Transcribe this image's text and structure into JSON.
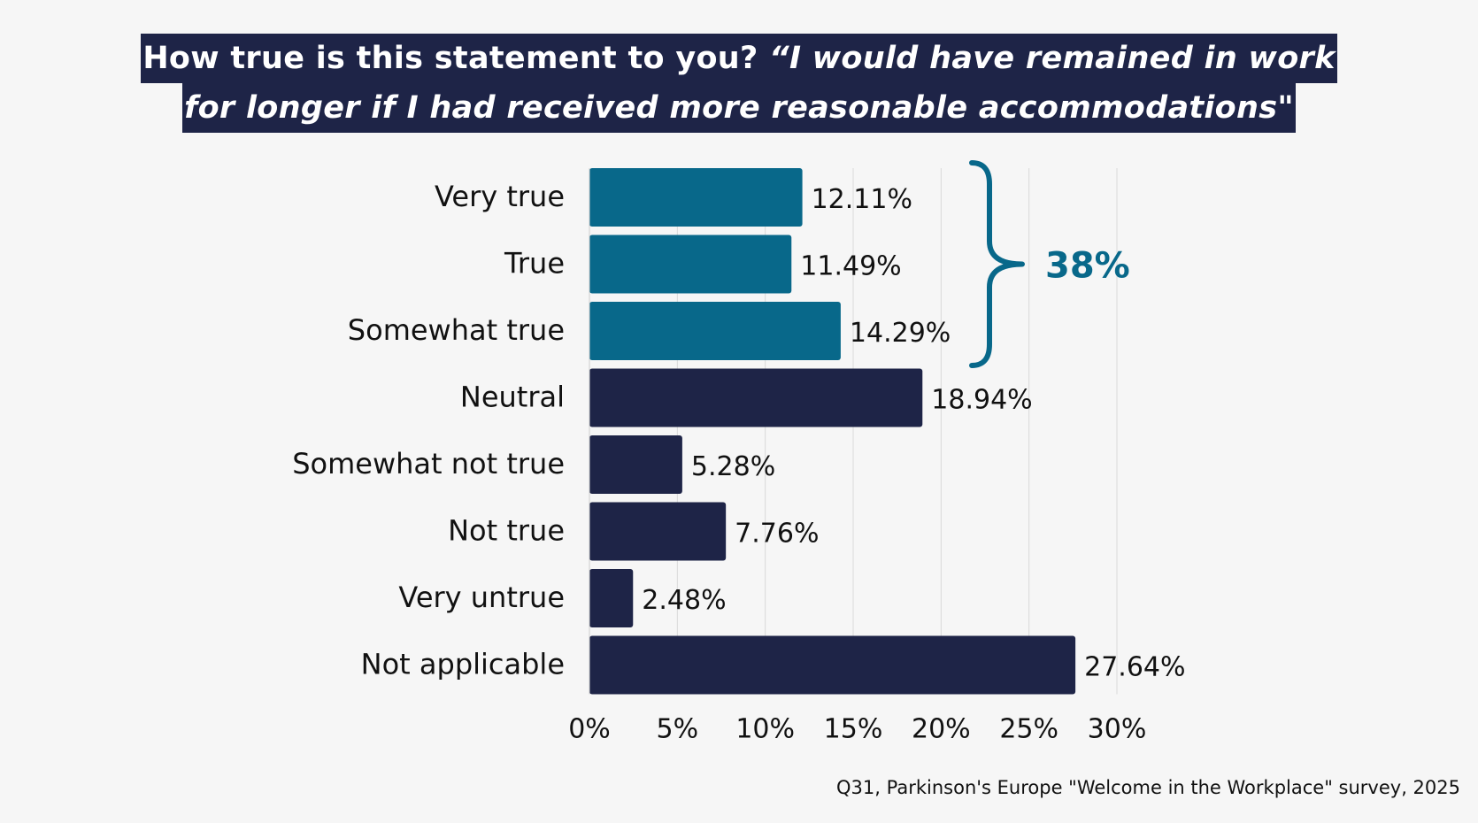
{
  "title": {
    "line1_plain": "How true is this statement to you? ",
    "line1_italic": "“I would have remained in work",
    "line2_italic": "for longer if I had received more reasonable accommodations",
    "line2_plain": "\""
  },
  "chart_data": {
    "type": "bar",
    "orientation": "horizontal",
    "categories": [
      "Very true",
      "True",
      "Somewhat true",
      "Neutral",
      "Somewhat not true",
      "Not true",
      "Very untrue",
      "Not applicable"
    ],
    "values": [
      12.11,
      11.49,
      14.29,
      18.94,
      5.28,
      7.76,
      2.48,
      27.64
    ],
    "value_labels": [
      "12.11%",
      "11.49%",
      "14.29%",
      "18.94%",
      "5.28%",
      "7.76%",
      "2.48%",
      "27.64%"
    ],
    "bar_colors": [
      "#08688a",
      "#08688a",
      "#08688a",
      "#1e2447",
      "#1e2447",
      "#1e2447",
      "#1e2447",
      "#1e2447"
    ],
    "xlim": [
      0,
      30
    ],
    "xticks": [
      0,
      5,
      10,
      15,
      20,
      25,
      30
    ],
    "xtick_labels": [
      "0%",
      "5%",
      "10%",
      "15%",
      "20%",
      "25%",
      "30%"
    ],
    "grid": true,
    "bracket": {
      "covers": [
        "Very true",
        "True",
        "Somewhat true"
      ],
      "label": "38%",
      "color": "#08688a"
    },
    "xlabel": "",
    "ylabel": ""
  },
  "footnote": "Q31, Parkinson's Europe \"Welcome in the Workplace\" survey, 2025"
}
